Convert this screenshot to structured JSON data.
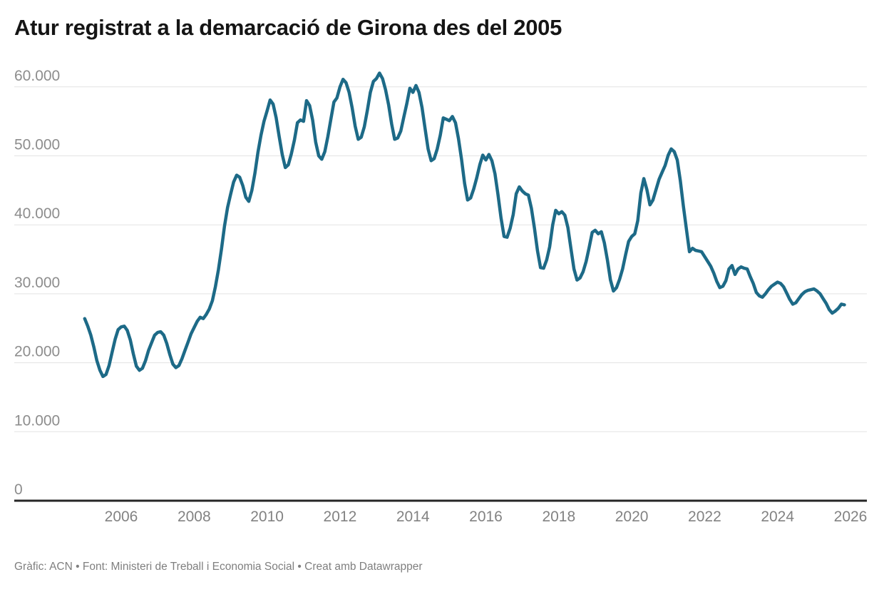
{
  "header": {
    "title": "Atur registrat a la demarcació de Girona des del 2005"
  },
  "footer": {
    "attribution": "Gràfic: ACN • Font: Ministeri de Treball i Economia Social",
    "separator": " • ",
    "credit": "Creat amb Datawrapper"
  },
  "colors": {
    "line": "#1d6a87",
    "grid": "#e3e3e3",
    "baseline": "#262626",
    "y_label": "#8d8d8d",
    "x_label": "#828282",
    "title": "#151515",
    "footer": "#7f7f7f",
    "background": "#ffffff"
  },
  "chart_data": {
    "type": "line",
    "title": "Atur registrat a la demarcació de Girona des del 2005",
    "xlabel": "",
    "ylabel": "",
    "frequency": "monthly",
    "x_start": "2005-01",
    "x_end": "2025-11",
    "ylim": [
      0,
      63000
    ],
    "grid": "horizontal",
    "legend": "none",
    "y_ticks": [
      {
        "value": 60000,
        "label": "60.000"
      },
      {
        "value": 50000,
        "label": "50.000"
      },
      {
        "value": 40000,
        "label": "40.000"
      },
      {
        "value": 30000,
        "label": "30.000"
      },
      {
        "value": 20000,
        "label": "20.000"
      },
      {
        "value": 10000,
        "label": "10.000"
      },
      {
        "value": 0,
        "label": "0"
      }
    ],
    "x_ticks": [
      {
        "year": 2006,
        "label": "2006"
      },
      {
        "year": 2008,
        "label": "2008"
      },
      {
        "year": 2010,
        "label": "2010"
      },
      {
        "year": 2012,
        "label": "2012"
      },
      {
        "year": 2014,
        "label": "2014"
      },
      {
        "year": 2016,
        "label": "2016"
      },
      {
        "year": 2018,
        "label": "2018"
      },
      {
        "year": 2020,
        "label": "2020"
      },
      {
        "year": 2022,
        "label": "2022"
      },
      {
        "year": 2024,
        "label": "2024"
      },
      {
        "year": 2026,
        "label": "2026"
      }
    ],
    "series": [
      {
        "name": "Atur registrat",
        "start_year": 2005,
        "start_month": 1,
        "values": [
          26400,
          25300,
          24000,
          22300,
          20300,
          18900,
          18000,
          18300,
          19600,
          21500,
          23400,
          24800,
          25200,
          25300,
          24700,
          23300,
          21300,
          19500,
          18900,
          19200,
          20300,
          21800,
          22900,
          24000,
          24400,
          24500,
          24000,
          22800,
          21200,
          19800,
          19300,
          19600,
          20600,
          21800,
          23000,
          24200,
          25100,
          26000,
          26600,
          26400,
          27000,
          27800,
          29000,
          31000,
          33500,
          36500,
          39800,
          42500,
          44400,
          46200,
          47200,
          46900,
          45700,
          44000,
          43400,
          45000,
          47500,
          50500,
          53000,
          55000,
          56500,
          58100,
          57500,
          55500,
          52800,
          50200,
          48300,
          48700,
          50300,
          52300,
          54800,
          55200,
          55000,
          58000,
          57300,
          55200,
          52000,
          50000,
          49500,
          50600,
          52800,
          55300,
          57800,
          58400,
          60000,
          61100,
          60600,
          59200,
          57000,
          54300,
          52400,
          52700,
          54200,
          56600,
          59200,
          60800,
          61200,
          62000,
          61200,
          59600,
          57400,
          54600,
          52400,
          52600,
          53600,
          55600,
          57600,
          59800,
          59200,
          60200,
          59200,
          57000,
          54000,
          51000,
          49300,
          49600,
          51000,
          53000,
          55500,
          55300,
          55100,
          55700,
          54800,
          52500,
          49500,
          46000,
          43600,
          43900,
          45200,
          46800,
          48700,
          50100,
          49400,
          50200,
          49300,
          47400,
          44400,
          41000,
          38300,
          38200,
          39500,
          41500,
          44500,
          45500,
          44900,
          44500,
          44300,
          42400,
          39500,
          36200,
          33800,
          33700,
          34900,
          36800,
          40000,
          42100,
          41600,
          41900,
          41400,
          39600,
          36600,
          33600,
          32000,
          32300,
          33200,
          34700,
          36700,
          38900,
          39200,
          38700,
          39000,
          37400,
          34900,
          32000,
          30400,
          30900,
          32100,
          33600,
          35700,
          37600,
          38300,
          38700,
          40600,
          44600,
          46700,
          45100,
          42900,
          43600,
          45100,
          46600,
          47600,
          48600,
          50100,
          51000,
          50600,
          49400,
          46400,
          42700,
          39400,
          36100,
          36600,
          36300,
          36200,
          36100,
          35400,
          34700,
          34000,
          33000,
          31800,
          30900,
          31100,
          31900,
          33600,
          34100,
          32800,
          33600,
          33900,
          33700,
          33600,
          32500,
          31500,
          30200,
          29700,
          29500,
          30000,
          30600,
          31100,
          31400,
          31700,
          31500,
          31000,
          30100,
          29200,
          28500,
          28700,
          29300,
          29900,
          30300,
          30500,
          30600,
          30700,
          30400,
          30000,
          29300,
          28600,
          27700,
          27200,
          27500,
          27900,
          28500,
          28400
        ]
      }
    ]
  }
}
